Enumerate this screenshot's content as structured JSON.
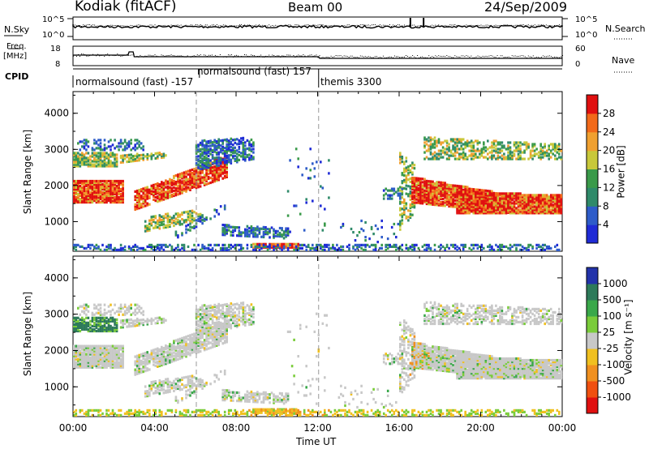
{
  "header": {
    "station": "Kodiak (fitACF)",
    "beam": "Beam 00",
    "date": "24/Sep/2009"
  },
  "noise_panel": {
    "left_label": "N.Sky",
    "right_label": "N.Search",
    "right_top_tick": "10^5",
    "right_bottom_tick": "10^0",
    "left_top_tick": "10^5",
    "left_bottom_tick": "10^0"
  },
  "freq_panel": {
    "left_label_1": "Freq.",
    "left_label_2": "[MHz]",
    "left_top_tick": "18",
    "left_bottom_tick": "8",
    "right_label": "Nave",
    "right_top_tick": "60",
    "right_bottom_tick": "0"
  },
  "cpid": {
    "label": "CPID",
    "modes": [
      {
        "name": "normalsound (fast) -157",
        "start_hour": 0
      },
      {
        "name": "normalsound (fast) 157",
        "start_hour": 6.2
      },
      {
        "name": "themis 3300",
        "start_hour": 12.05
      }
    ]
  },
  "chart_data": [
    {
      "type": "heatmap",
      "name": "power",
      "ylabel": "Slant Range [km]",
      "xlim": [
        0,
        24
      ],
      "ylim": [
        180,
        4600
      ],
      "yticks": [
        1000,
        2000,
        3000,
        4000
      ],
      "colorbar": {
        "label": "Power [dB]",
        "ticks": [
          "4",
          "8",
          "12",
          "16",
          "20",
          "24",
          "28"
        ],
        "range": [
          0,
          32
        ],
        "colors": [
          "#1f2bd6",
          "#2e5cc9",
          "#2f8a6a",
          "#3a9a4a",
          "#c8c83a",
          "#f0a030",
          "#f26a1a",
          "#e01010"
        ]
      }
    },
    {
      "type": "heatmap",
      "name": "velocity",
      "ylabel": "Slant Range [km]",
      "xlabel": "Time UT",
      "xlim": [
        0,
        24
      ],
      "ylim": [
        180,
        4600
      ],
      "yticks": [
        1000,
        2000,
        3000,
        4000
      ],
      "xticks": [
        "00:00",
        "04:00",
        "08:00",
        "12:00",
        "16:00",
        "20:00",
        "00:00"
      ],
      "colorbar": {
        "label": "Velocity [m s⁻¹]",
        "ticks": [
          "1000",
          "500",
          "100",
          "25",
          "-25",
          "-100",
          "-500",
          "-1000"
        ],
        "colors": [
          "#2233aa",
          "#2d7a5a",
          "#3aa84a",
          "#7acc3a",
          "#c8c8c8",
          "#f0c020",
          "#f09020",
          "#f05010",
          "#e01010"
        ]
      }
    }
  ],
  "dashed_lines_hours": [
    6.05,
    12.05
  ]
}
